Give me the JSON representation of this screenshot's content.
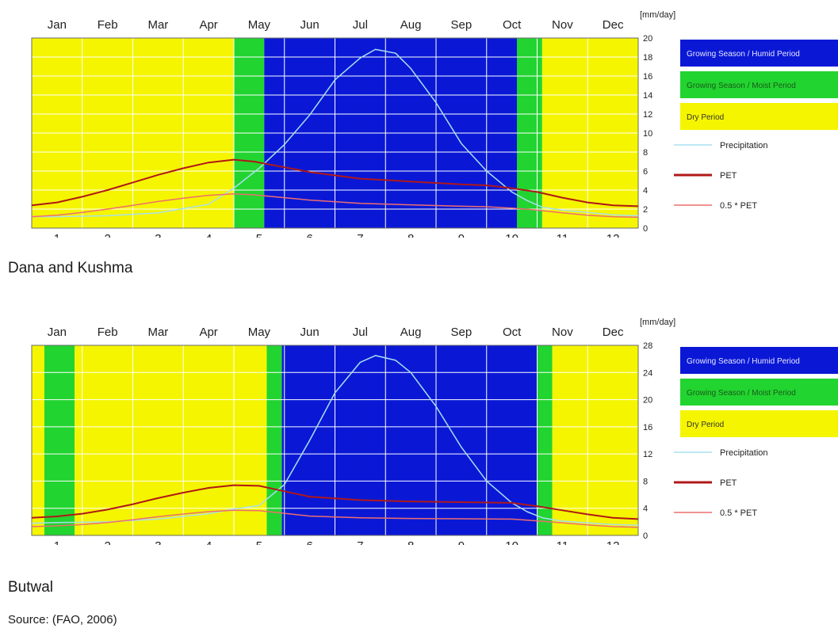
{
  "colors": {
    "humid": "#0a18d6",
    "moist": "#22d430",
    "dry": "#f5f500",
    "precip": "#a8e0f0",
    "pet": "#b01818",
    "half_pet": "#ee6e6e",
    "grid": "#ffffff"
  },
  "source_text": "Source: (FAO, 2006)",
  "chart_data": [
    {
      "type": "line",
      "caption": "Dana and Kushma",
      "months": [
        "Jan",
        "Feb",
        "Mar",
        "Apr",
        "May",
        "Jun",
        "Jul",
        "Aug",
        "Sep",
        "Oct",
        "Nov",
        "Dec"
      ],
      "x_ticks": [
        "1",
        "2",
        "3",
        "4",
        "5",
        "6",
        "7",
        "8",
        "9",
        "10",
        "11",
        "12"
      ],
      "y_unit": "[mm/day]",
      "y_ticks": [
        0,
        2,
        4,
        6,
        8,
        10,
        12,
        14,
        16,
        18,
        20
      ],
      "ylim": [
        0,
        20
      ],
      "xlim": [
        0.5,
        12.5
      ],
      "grid": true,
      "bands": [
        {
          "start": 0.5,
          "end": 4.5,
          "period": "dry"
        },
        {
          "start": 4.5,
          "end": 5.1,
          "period": "moist"
        },
        {
          "start": 5.1,
          "end": 10.1,
          "period": "humid"
        },
        {
          "start": 10.1,
          "end": 10.6,
          "period": "moist"
        },
        {
          "start": 10.6,
          "end": 12.5,
          "period": "dry"
        }
      ],
      "legend": [
        {
          "key": "humid",
          "label": "Growing Season / Humid Period",
          "kind": "box"
        },
        {
          "key": "moist",
          "label": "Growing Season / Moist Period",
          "kind": "box"
        },
        {
          "key": "dry",
          "label": "Dry Period",
          "kind": "box"
        },
        {
          "key": "precip",
          "label": "Precipitation",
          "kind": "line"
        },
        {
          "key": "pet",
          "label": "PET",
          "kind": "line"
        },
        {
          "key": "half_pet",
          "label": "0.5 * PET",
          "kind": "line"
        }
      ],
      "series": [
        {
          "key": "precip",
          "name": "Precipitation",
          "x": [
            0.5,
            1,
            2,
            3,
            4,
            4.5,
            5,
            5.5,
            6,
            6.5,
            7,
            7.3,
            7.7,
            8,
            8.5,
            9,
            9.5,
            10,
            10.3,
            10.6,
            11,
            12,
            12.5
          ],
          "y": [
            1.2,
            1.2,
            1.3,
            1.6,
            2.5,
            4.2,
            6.3,
            8.8,
            11.9,
            15.6,
            17.9,
            18.8,
            18.4,
            16.8,
            13.2,
            8.9,
            6.0,
            3.8,
            2.9,
            2.2,
            1.9,
            1.4,
            1.3
          ]
        },
        {
          "key": "pet",
          "name": "PET",
          "x": [
            0.5,
            1,
            1.5,
            2,
            2.5,
            3,
            3.5,
            4,
            4.5,
            4.9,
            5.5,
            6,
            7,
            8,
            9,
            9.5,
            10,
            10.5,
            11,
            11.5,
            12,
            12.5
          ],
          "y": [
            2.4,
            2.7,
            3.3,
            4.0,
            4.8,
            5.6,
            6.3,
            6.9,
            7.2,
            7.0,
            6.4,
            5.9,
            5.2,
            4.9,
            4.6,
            4.5,
            4.2,
            3.8,
            3.2,
            2.7,
            2.4,
            2.3
          ]
        },
        {
          "key": "half_pet",
          "name": "0.5 * PET",
          "x": [
            0.5,
            1,
            1.5,
            2,
            2.5,
            3,
            3.5,
            4,
            4.5,
            4.9,
            5.5,
            6,
            7,
            8,
            9,
            9.5,
            10,
            10.5,
            11,
            11.5,
            12,
            12.5
          ],
          "y": [
            1.2,
            1.35,
            1.65,
            2.0,
            2.4,
            2.8,
            3.15,
            3.45,
            3.6,
            3.5,
            3.2,
            2.95,
            2.6,
            2.45,
            2.3,
            2.25,
            2.1,
            1.9,
            1.6,
            1.35,
            1.2,
            1.15
          ]
        }
      ]
    },
    {
      "type": "line",
      "caption": "Butwal",
      "months": [
        "Jan",
        "Feb",
        "Mar",
        "Apr",
        "May",
        "Jun",
        "Jul",
        "Aug",
        "Sep",
        "Oct",
        "Nov",
        "Dec"
      ],
      "x_ticks": [
        "1",
        "2",
        "3",
        "4",
        "5",
        "6",
        "7",
        "8",
        "9",
        "10",
        "11",
        "12"
      ],
      "y_unit": "[mm/day]",
      "y_ticks": [
        0,
        4,
        8,
        12,
        16,
        20,
        24,
        28
      ],
      "ylim": [
        0,
        28
      ],
      "xlim": [
        0.5,
        12.5
      ],
      "grid": true,
      "bands": [
        {
          "start": 0.5,
          "end": 0.75,
          "period": "dry"
        },
        {
          "start": 0.75,
          "end": 1.35,
          "period": "moist"
        },
        {
          "start": 1.35,
          "end": 5.15,
          "period": "dry"
        },
        {
          "start": 5.15,
          "end": 5.45,
          "period": "moist"
        },
        {
          "start": 5.45,
          "end": 10.5,
          "period": "humid"
        },
        {
          "start": 10.5,
          "end": 10.8,
          "period": "moist"
        },
        {
          "start": 10.8,
          "end": 12.5,
          "period": "dry"
        }
      ],
      "legend": [
        {
          "key": "humid",
          "label": "Growing Season / Humid Period",
          "kind": "box"
        },
        {
          "key": "moist",
          "label": "Growing Season / Moist Period",
          "kind": "box"
        },
        {
          "key": "dry",
          "label": "Dry Period",
          "kind": "box"
        },
        {
          "key": "precip",
          "label": "Precipitation",
          "kind": "line"
        },
        {
          "key": "pet",
          "label": "PET",
          "kind": "line"
        },
        {
          "key": "half_pet",
          "label": "0.5 * PET",
          "kind": "line"
        }
      ],
      "series": [
        {
          "key": "precip",
          "name": "Precipitation",
          "x": [
            0.5,
            1,
            2,
            3,
            4,
            4.5,
            5,
            5.5,
            6,
            6.5,
            7,
            7.3,
            7.7,
            8,
            8.5,
            9,
            9.5,
            10,
            10.3,
            10.6,
            11,
            12,
            12.5
          ],
          "y": [
            1.8,
            1.9,
            2.0,
            2.4,
            3.2,
            3.9,
            4.4,
            7.5,
            14.0,
            21.0,
            25.5,
            26.5,
            25.8,
            24.0,
            19.0,
            13.0,
            8.0,
            4.8,
            3.5,
            2.6,
            2.1,
            1.6,
            1.5
          ]
        },
        {
          "key": "pet",
          "name": "PET",
          "x": [
            0.5,
            1,
            1.5,
            2,
            2.5,
            3,
            3.5,
            4,
            4.5,
            5,
            5.5,
            6,
            7,
            8,
            9,
            10,
            10.5,
            11,
            11.5,
            12,
            12.5
          ],
          "y": [
            2.6,
            2.8,
            3.2,
            3.8,
            4.6,
            5.5,
            6.3,
            7.0,
            7.4,
            7.3,
            6.5,
            5.7,
            5.2,
            5.0,
            4.9,
            4.8,
            4.3,
            3.7,
            3.1,
            2.6,
            2.4
          ]
        },
        {
          "key": "half_pet",
          "name": "0.5 * PET",
          "x": [
            0.5,
            1,
            1.5,
            2,
            2.5,
            3,
            3.5,
            4,
            4.5,
            5,
            5.5,
            6,
            7,
            8,
            9,
            10,
            10.5,
            11,
            11.5,
            12,
            12.5
          ],
          "y": [
            1.3,
            1.4,
            1.6,
            1.9,
            2.3,
            2.75,
            3.15,
            3.5,
            3.7,
            3.65,
            3.25,
            2.85,
            2.6,
            2.5,
            2.45,
            2.4,
            2.15,
            1.85,
            1.55,
            1.3,
            1.2
          ]
        }
      ]
    }
  ]
}
